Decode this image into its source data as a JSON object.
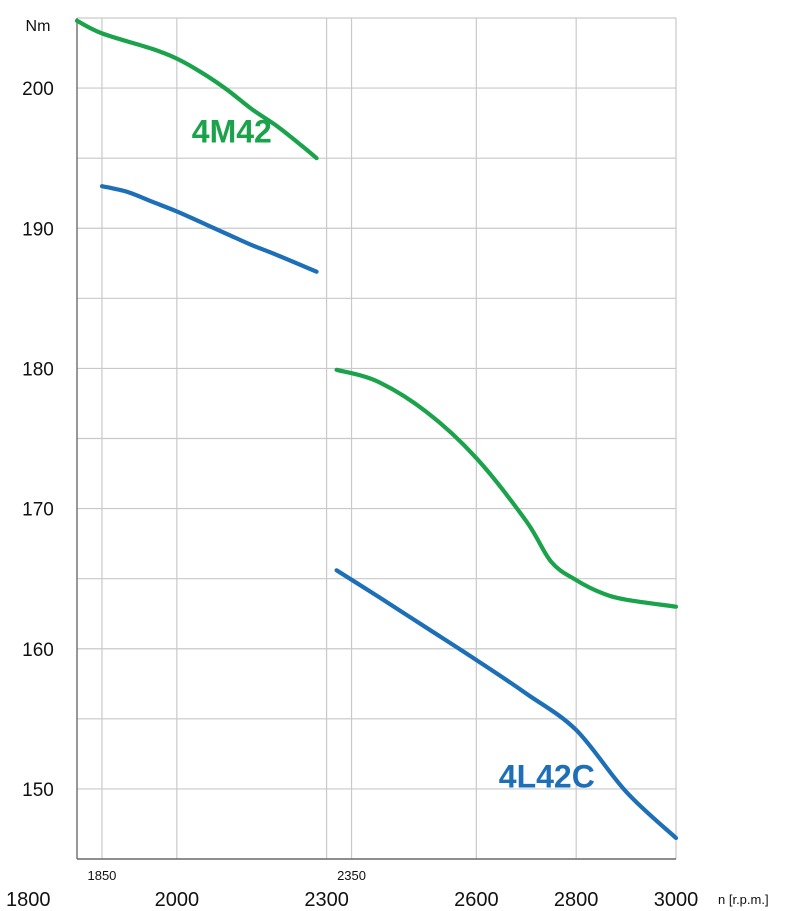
{
  "chart_data": {
    "type": "line",
    "ylabel": "Nm",
    "xlabel": "n [r.p.m.]",
    "xlim": [
      1800,
      3000
    ],
    "ylim": [
      145,
      205
    ],
    "x_ticks_major": [
      1800,
      2000,
      2300,
      2600,
      2800,
      3000
    ],
    "x_ticks_minor": [
      1850,
      2350
    ],
    "x_grid": [
      1850,
      2000,
      2300,
      2350,
      2600,
      2800,
      3000
    ],
    "y_ticks": [
      150,
      160,
      170,
      180,
      190,
      200
    ],
    "y_grid": [
      145,
      150,
      155,
      160,
      165,
      170,
      175,
      180,
      185,
      190,
      195,
      200,
      205
    ],
    "grid": true,
    "series": [
      {
        "name": "4M42",
        "color": "#1aa34a",
        "x": [
          1800,
          1850,
          1950,
          2000,
          2050,
          2100,
          2150,
          2200,
          2250,
          2280
        ],
        "y": [
          204.8,
          203.9,
          202.8,
          202.1,
          201.1,
          199.9,
          198.5,
          197.3,
          195.9,
          195.0
        ]
      },
      {
        "name": "",
        "color": "#1d6fb8",
        "x": [
          1850,
          1900,
          1950,
          2000,
          2050,
          2100,
          2150,
          2200,
          2280
        ],
        "y": [
          193.0,
          192.6,
          191.9,
          191.2,
          190.4,
          189.6,
          188.8,
          188.1,
          186.9
        ]
      },
      {
        "name": "",
        "color": "#1aa34a",
        "x": [
          2320,
          2400,
          2500,
          2600,
          2700,
          2750,
          2800,
          2850,
          2900,
          3000
        ],
        "y": [
          179.9,
          179.1,
          176.9,
          173.6,
          169.1,
          166.2,
          164.9,
          164.0,
          163.5,
          163.0
        ]
      },
      {
        "name": "4L42C",
        "color": "#1d6fb8",
        "x": [
          2320,
          2400,
          2500,
          2600,
          2700,
          2800,
          2900,
          3000
        ],
        "y": [
          165.6,
          163.8,
          161.5,
          159.2,
          156.8,
          154.2,
          149.8,
          146.5
        ]
      }
    ]
  }
}
